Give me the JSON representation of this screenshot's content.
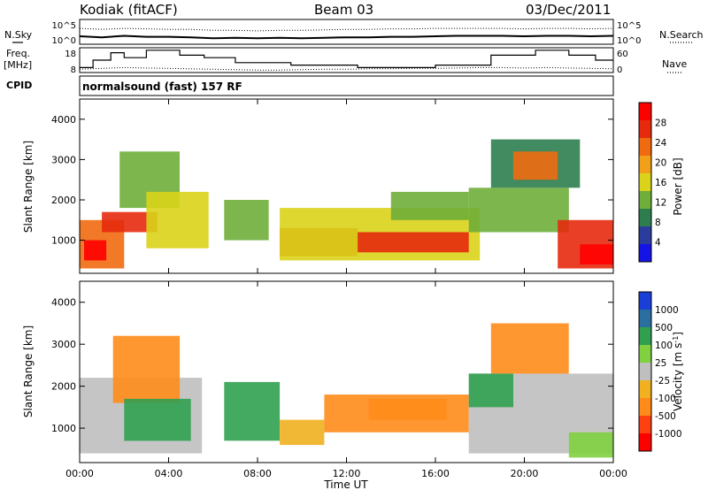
{
  "header": {
    "station": "Kodiak (fitACF)",
    "beam": "Beam 03",
    "date": "03/Dec/2011"
  },
  "left_labels": {
    "nsky": "N.Sky",
    "freq": "Freq.",
    "freq_unit": "[MHz]",
    "cpid": "CPID"
  },
  "right_labels": {
    "nsearch": "N.Search",
    "nave": "Nave"
  },
  "cpid_text": "normalsound (fast) 157 RF",
  "x_axis": {
    "label": "Time UT",
    "ticks": [
      "00:00",
      "04:00",
      "08:00",
      "12:00",
      "16:00",
      "20:00",
      "00:00"
    ]
  },
  "colors": {
    "power_scale": [
      "#1414e6",
      "#2a3d9c",
      "#2e7d4f",
      "#6fae3a",
      "#d9d31a",
      "#f2a01a",
      "#f06a10",
      "#e62a0e",
      "#ff0000"
    ],
    "velocity_scale": [
      "#ff0000",
      "#ff4010",
      "#ff8c1a",
      "#f0b020",
      "#bfbfbf",
      "#80d040",
      "#30a050",
      "#2a6fa0",
      "#1a3fd6"
    ],
    "ground_scatter": "#bfbfbf"
  },
  "chart_data": [
    {
      "type": "line",
      "panel": "noise",
      "y_ticks_left": [
        "10^5",
        "10^0"
      ],
      "y_ticks_right": [
        "10^5",
        "10^0"
      ],
      "series": [
        {
          "name": "N.Sky",
          "x": [
            0,
            1,
            2,
            3,
            4,
            5,
            6,
            7,
            8,
            9,
            10,
            11,
            12,
            13,
            14,
            15,
            16,
            17,
            18,
            19,
            20,
            21,
            22,
            23,
            24
          ],
          "y": [
            1.6,
            1.4,
            1.7,
            1.5,
            1.5,
            1.4,
            1.2,
            1.3,
            1.2,
            1.3,
            1.2,
            1.3,
            1.4,
            1.4,
            1.5,
            1.5,
            1.6,
            1.7,
            1.7,
            1.7,
            1.6,
            1.7,
            1.7,
            1.6,
            1.7
          ]
        },
        {
          "name": "N.Search",
          "x": [
            0,
            1,
            2,
            3,
            4,
            5,
            6,
            7,
            8,
            9,
            10,
            11,
            12,
            13,
            14,
            15,
            16,
            17,
            18,
            19,
            20,
            21,
            22,
            23,
            24
          ],
          "y": [
            3.2,
            3.0,
            3.2,
            3.1,
            3.0,
            3.0,
            2.8,
            2.8,
            2.7,
            2.8,
            2.8,
            2.9,
            3.0,
            3.0,
            3.1,
            3.1,
            3.2,
            3.2,
            3.2,
            3.2,
            3.1,
            3.2,
            3.2,
            3.1,
            3.2
          ]
        }
      ]
    },
    {
      "type": "line",
      "panel": "frequency_nave",
      "y_ticks_left": [
        "18",
        "8"
      ],
      "y_ticks_right": [
        "60",
        "0"
      ],
      "series": [
        {
          "name": "Freq.",
          "x": [
            0,
            0.6,
            0.6,
            1.4,
            1.4,
            2.0,
            2.0,
            3.0,
            3.0,
            4.5,
            4.5,
            5.6,
            5.6,
            7.0,
            7.0,
            9.5,
            9.5,
            12.5,
            12.5,
            16.0,
            16.0,
            18.5,
            18.5,
            20.5,
            20.5,
            22.0,
            22.0,
            23.2,
            23.2,
            24
          ],
          "y": [
            10,
            10,
            13,
            13,
            16,
            16,
            14,
            14,
            17,
            17,
            15,
            15,
            14,
            14,
            12,
            12,
            11,
            11,
            10,
            10,
            11,
            11,
            15,
            15,
            17,
            17,
            15,
            15,
            13,
            13
          ]
        },
        {
          "name": "Nave",
          "x": [
            0,
            1,
            2,
            3,
            4,
            5,
            6,
            7,
            8,
            9,
            10,
            11,
            12,
            13,
            14,
            15,
            16,
            17,
            18,
            19,
            20,
            21,
            22,
            23,
            24
          ],
          "y": [
            8,
            10,
            12,
            11,
            10,
            9,
            8,
            7,
            6,
            6,
            7,
            8,
            8,
            9,
            9,
            10,
            10,
            11,
            12,
            12,
            11,
            12,
            11,
            10,
            9
          ]
        }
      ]
    },
    {
      "type": "heatmap",
      "panel": "power",
      "xlabel": "",
      "ylabel": "Slant Range [km]",
      "xlim": [
        0,
        24
      ],
      "ylim": [
        180,
        4500
      ],
      "y_ticks": [
        1000,
        2000,
        3000,
        4000
      ],
      "colorbar": {
        "label": "Power [dB]",
        "ticks": [
          "28",
          "24",
          "20",
          "16",
          "12",
          "8",
          "4"
        ],
        "range": [
          0,
          30
        ]
      },
      "regions": [
        {
          "t0": 0.0,
          "t1": 2.0,
          "r0": 300,
          "r1": 1500,
          "value": 22
        },
        {
          "t0": 0.2,
          "t1": 1.2,
          "r0": 500,
          "r1": 1000,
          "value": 28
        },
        {
          "t0": 1.0,
          "t1": 3.5,
          "r0": 1200,
          "r1": 1700,
          "value": 25
        },
        {
          "t0": 1.8,
          "t1": 4.5,
          "r0": 1800,
          "r1": 3200,
          "value": 10
        },
        {
          "t0": 3.0,
          "t1": 5.8,
          "r0": 800,
          "r1": 2200,
          "value": 14
        },
        {
          "t0": 6.5,
          "t1": 8.5,
          "r0": 1000,
          "r1": 2000,
          "value": 13
        },
        {
          "t0": 9.0,
          "t1": 12.5,
          "r0": 600,
          "r1": 1300,
          "value": 26
        },
        {
          "t0": 9.0,
          "t1": 18.0,
          "r0": 500,
          "r1": 1800,
          "value": 16
        },
        {
          "t0": 12.5,
          "t1": 17.5,
          "r0": 700,
          "r1": 1200,
          "value": 24
        },
        {
          "t0": 14.0,
          "t1": 17.5,
          "r0": 1500,
          "r1": 2200,
          "value": 11
        },
        {
          "t0": 17.5,
          "t1": 22.0,
          "r0": 1200,
          "r1": 2300,
          "value": 13
        },
        {
          "t0": 18.5,
          "t1": 22.5,
          "r0": 2300,
          "r1": 3500,
          "value": 9
        },
        {
          "t0": 19.5,
          "t1": 21.5,
          "r0": 2500,
          "r1": 3200,
          "value": 22
        },
        {
          "t0": 21.5,
          "t1": 24.0,
          "r0": 300,
          "r1": 1500,
          "value": 24
        },
        {
          "t0": 22.5,
          "t1": 24.0,
          "r0": 400,
          "r1": 900,
          "value": 29
        }
      ]
    },
    {
      "type": "heatmap",
      "panel": "velocity",
      "xlabel": "Time UT",
      "ylabel": "Slant Range [km]",
      "xlim": [
        0,
        24
      ],
      "ylim": [
        180,
        4500
      ],
      "y_ticks": [
        1000,
        2000,
        3000,
        4000
      ],
      "colorbar": {
        "label": "Velocity [m s-1]",
        "ticks": [
          "1000",
          "500",
          "100",
          "25",
          "-25",
          "-100",
          "-500",
          "-1000"
        ],
        "range": [
          -1000,
          1000
        ]
      },
      "regions": [
        {
          "t0": 0.0,
          "t1": 5.5,
          "r0": 400,
          "r1": 2200,
          "value": "ground"
        },
        {
          "t0": 1.5,
          "t1": 4.5,
          "r0": 1600,
          "r1": 3200,
          "value": -150
        },
        {
          "t0": 2.0,
          "t1": 5.0,
          "r0": 700,
          "r1": 1700,
          "value": 120
        },
        {
          "t0": 6.5,
          "t1": 9.0,
          "r0": 700,
          "r1": 2100,
          "value": 400
        },
        {
          "t0": 9.0,
          "t1": 11.0,
          "r0": 600,
          "r1": 1200,
          "value": -80
        },
        {
          "t0": 11.0,
          "t1": 17.5,
          "r0": 900,
          "r1": 1800,
          "value": -200
        },
        {
          "t0": 13.0,
          "t1": 16.5,
          "r0": 1200,
          "r1": 1700,
          "value": -120
        },
        {
          "t0": 17.5,
          "t1": 24.0,
          "r0": 400,
          "r1": 2300,
          "value": "ground"
        },
        {
          "t0": 18.5,
          "t1": 22.0,
          "r0": 2300,
          "r1": 3500,
          "value": -350
        },
        {
          "t0": 17.5,
          "t1": 19.5,
          "r0": 1500,
          "r1": 2300,
          "value": 300
        },
        {
          "t0": 22.0,
          "t1": 24.0,
          "r0": 300,
          "r1": 900,
          "value": 80
        }
      ]
    }
  ]
}
